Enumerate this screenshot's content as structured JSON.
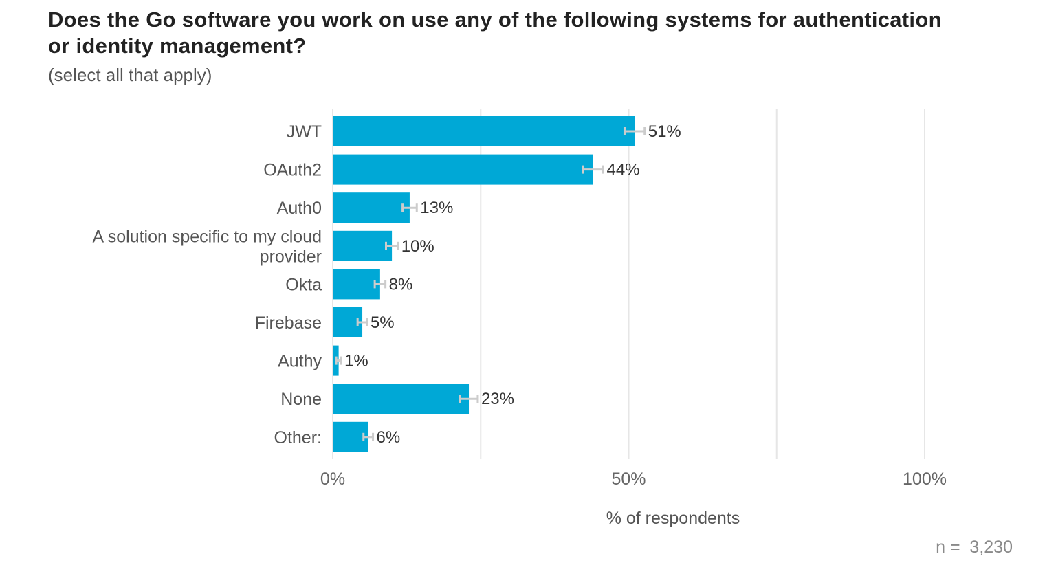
{
  "chart_data": {
    "type": "bar",
    "orientation": "horizontal",
    "title": "Does the Go software you work on use any of the following systems for authentication or identity management?",
    "subtitle": "(select all that apply)",
    "categories": [
      "JWT",
      "OAuth2",
      "Auth0",
      "A solution specific to my cloud provider",
      "Okta",
      "Firebase",
      "Authy",
      "None",
      "Other:"
    ],
    "category_lines": [
      [
        "JWT"
      ],
      [
        "OAuth2"
      ],
      [
        "Auth0"
      ],
      [
        "A solution specific to my cloud",
        "provider"
      ],
      [
        "Okta"
      ],
      [
        "Firebase"
      ],
      [
        "Authy"
      ],
      [
        "None"
      ],
      [
        "Other:"
      ]
    ],
    "values": [
      51,
      44,
      13,
      10,
      8,
      5,
      1,
      23,
      6
    ],
    "value_labels": [
      "51%",
      "44%",
      "13%",
      "10%",
      "8%",
      "5%",
      "1%",
      "23%",
      "6%"
    ],
    "error_margin": [
      1.7,
      1.7,
      1.2,
      1.0,
      0.9,
      0.8,
      0.4,
      1.5,
      0.8
    ],
    "xlabel": "% of respondents",
    "xlim": [
      0,
      100
    ],
    "xticks": [
      0,
      50,
      100
    ],
    "xtick_labels": [
      "0%",
      "50%",
      "100%"
    ],
    "minor_gridlines": [
      25,
      75
    ],
    "grid": true,
    "bar_color": "#00a8d6",
    "error_bar_color": "#cccccc",
    "grid_color": "#e6e6e6",
    "note": "n =  3,230"
  }
}
